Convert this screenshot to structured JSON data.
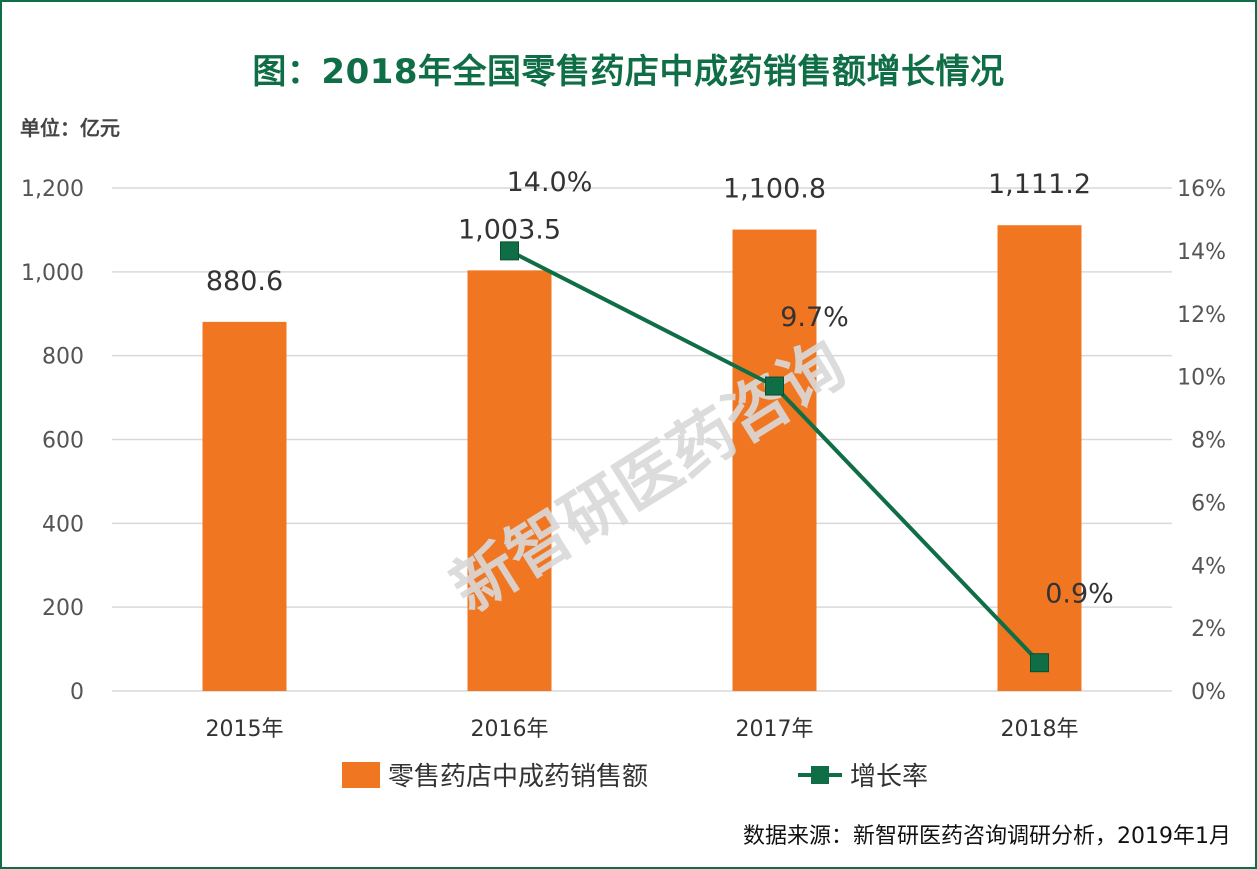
{
  "title": "图：2018年全国零售药店中成药销售额增长情况",
  "unit_label": "单位：亿元",
  "source_note": "数据来源：新智研医药咨询调研分析，2019年1月",
  "watermark": "新智研医药咨询",
  "colors": {
    "bar": "#f07622",
    "line": "#0f6e46",
    "title": "#0f6e46",
    "grid": "#d9d9d9"
  },
  "chart_data": {
    "type": "bar",
    "categories": [
      "2015年",
      "2016年",
      "2017年",
      "2018年"
    ],
    "series": [
      {
        "name": "零售药店中成药销售额",
        "type": "bar",
        "axis": "left",
        "values": [
          880.6,
          1003.5,
          1100.8,
          1111.2
        ],
        "labels": [
          "880.6",
          "1,003.5",
          "1,100.8",
          "1,111.2"
        ]
      },
      {
        "name": "增长率",
        "type": "line",
        "axis": "right",
        "values": [
          null,
          14.0,
          9.7,
          0.9
        ],
        "labels": [
          "",
          "14.0%",
          "9.7%",
          "0.9%"
        ]
      }
    ],
    "y_left": {
      "range": [
        0,
        1200
      ],
      "ticks": [
        0,
        200,
        400,
        600,
        800,
        1000,
        1200
      ],
      "tick_labels": [
        "0",
        "200",
        "400",
        "600",
        "800",
        "1,000",
        "1,200"
      ]
    },
    "y_right": {
      "range": [
        0,
        16
      ],
      "ticks": [
        0,
        2,
        4,
        6,
        8,
        10,
        12,
        14,
        16
      ],
      "tick_labels": [
        "0%",
        "2%",
        "4%",
        "6%",
        "8%",
        "10%",
        "12%",
        "14%",
        "16%"
      ]
    },
    "grid": true,
    "legend": "bottom"
  }
}
